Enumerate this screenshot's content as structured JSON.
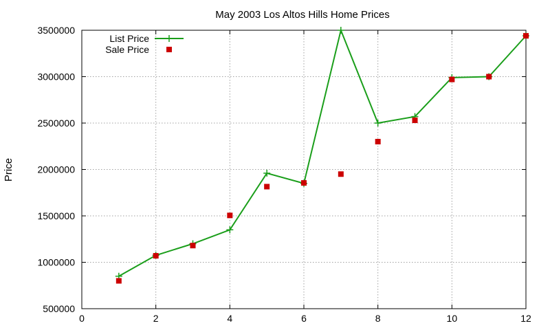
{
  "chart_data": {
    "type": "line",
    "title": "May 2003 Los Altos Hills Home Prices",
    "xlabel": "",
    "ylabel": "Price",
    "xlim": [
      0,
      12
    ],
    "ylim": [
      500000,
      3500000
    ],
    "x_ticks": [
      "0",
      "2",
      "4",
      "6",
      "8",
      "10",
      "12"
    ],
    "y_ticks": [
      "500000",
      "1000000",
      "1500000",
      "2000000",
      "2500000",
      "3000000",
      "3500000"
    ],
    "grid": true,
    "legend_position": "top-left",
    "series": [
      {
        "name": "List Price",
        "style": "lines+points",
        "marker": "plus",
        "color": "#1a9e1a",
        "x": [
          1,
          2,
          3,
          4,
          5,
          6,
          7,
          8,
          9,
          10,
          11,
          12
        ],
        "y": [
          850000,
          1075000,
          1200000,
          1350000,
          1960000,
          1850000,
          3500000,
          2500000,
          2570000,
          2990000,
          3000000,
          3440000
        ]
      },
      {
        "name": "Sale Price",
        "style": "points",
        "marker": "square",
        "color": "#cc0000",
        "x": [
          1,
          2,
          3,
          4,
          5,
          6,
          7,
          8,
          9,
          10,
          11,
          12
        ],
        "y": [
          800000,
          1070000,
          1180000,
          1505000,
          1815000,
          1855000,
          1950000,
          2300000,
          2530000,
          2970000,
          3000000,
          3440000
        ]
      }
    ]
  }
}
